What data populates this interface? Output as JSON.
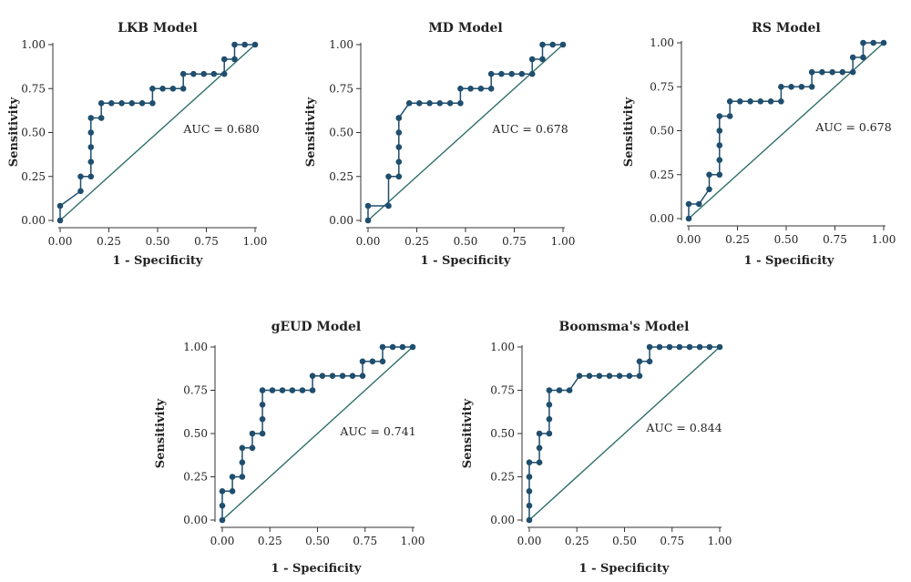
{
  "chart_data": [
    {
      "type": "line",
      "title": "LKB Model",
      "xlabel": "1 - Specificity",
      "ylabel": "Sensitivity",
      "xlim": [
        0,
        1
      ],
      "ylim": [
        0,
        1
      ],
      "xticks": [
        "0.00",
        "0.25",
        "0.50",
        "0.75",
        "1.00"
      ],
      "yticks": [
        "0.00",
        "0.25",
        "0.50",
        "0.75",
        "1.00"
      ],
      "annotation": "AUC = 0.680",
      "reference_line": [
        [
          0,
          0
        ],
        [
          1,
          1
        ]
      ],
      "series": [
        {
          "x": [
            0,
            0,
            0.105,
            0.105,
            0.158,
            0.158,
            0.158,
            0.158,
            0.158,
            0.211,
            0.211,
            0.263,
            0.316,
            0.368,
            0.421,
            0.474,
            0.474,
            0.526,
            0.579,
            0.632,
            0.632,
            0.684,
            0.737,
            0.789,
            0.842,
            0.842,
            0.895,
            0.895,
            0.947,
            1.0
          ],
          "y": [
            0,
            0.083,
            0.167,
            0.25,
            0.25,
            0.333,
            0.417,
            0.5,
            0.583,
            0.583,
            0.667,
            0.667,
            0.667,
            0.667,
            0.667,
            0.667,
            0.75,
            0.75,
            0.75,
            0.75,
            0.833,
            0.833,
            0.833,
            0.833,
            0.833,
            0.917,
            0.917,
            1.0,
            1.0,
            1.0
          ]
        }
      ]
    },
    {
      "type": "line",
      "title": "MD Model",
      "xlabel": "1 - Specificity",
      "ylabel": "Sensitivity",
      "xlim": [
        0,
        1
      ],
      "ylim": [
        0,
        1
      ],
      "xticks": [
        "0.00",
        "0.25",
        "0.50",
        "0.75",
        "1.00"
      ],
      "yticks": [
        "0.00",
        "0.25",
        "0.50",
        "0.75",
        "1.00"
      ],
      "annotation": "AUC = 0.678",
      "reference_line": [
        [
          0,
          0
        ],
        [
          1,
          1
        ]
      ],
      "series": [
        {
          "x": [
            0,
            0,
            0.105,
            0.105,
            0.158,
            0.158,
            0.158,
            0.158,
            0.158,
            0.158,
            0.211,
            0.263,
            0.316,
            0.368,
            0.421,
            0.474,
            0.474,
            0.526,
            0.579,
            0.632,
            0.632,
            0.684,
            0.737,
            0.789,
            0.842,
            0.842,
            0.895,
            0.895,
            0.947,
            1.0
          ],
          "y": [
            0,
            0.083,
            0.083,
            0.25,
            0.25,
            0.333,
            0.417,
            0.5,
            0.583,
            0.583,
            0.667,
            0.667,
            0.667,
            0.667,
            0.667,
            0.667,
            0.75,
            0.75,
            0.75,
            0.75,
            0.833,
            0.833,
            0.833,
            0.833,
            0.833,
            0.917,
            0.917,
            1.0,
            1.0,
            1.0
          ]
        }
      ]
    },
    {
      "type": "line",
      "title": "RS Model",
      "xlabel": "1 - Specificity",
      "ylabel": "Sensitivity",
      "xlim": [
        0,
        1
      ],
      "ylim": [
        0,
        1
      ],
      "xticks": [
        "0.00",
        "0.25",
        "0.50",
        "0.75",
        "1.00"
      ],
      "yticks": [
        "0.00",
        "0.25",
        "0.50",
        "0.75",
        "1.00"
      ],
      "annotation": "AUC = 0.678",
      "reference_line": [
        [
          0,
          0
        ],
        [
          1,
          1
        ]
      ],
      "series": [
        {
          "x": [
            0,
            0,
            0.053,
            0.105,
            0.105,
            0.158,
            0.158,
            0.158,
            0.158,
            0.158,
            0.211,
            0.211,
            0.263,
            0.316,
            0.368,
            0.421,
            0.474,
            0.474,
            0.526,
            0.579,
            0.632,
            0.632,
            0.684,
            0.737,
            0.789,
            0.842,
            0.842,
            0.895,
            0.895,
            0.947,
            1.0
          ],
          "y": [
            0,
            0.083,
            0.083,
            0.167,
            0.25,
            0.25,
            0.333,
            0.417,
            0.5,
            0.583,
            0.583,
            0.667,
            0.667,
            0.667,
            0.667,
            0.667,
            0.667,
            0.75,
            0.75,
            0.75,
            0.75,
            0.833,
            0.833,
            0.833,
            0.833,
            0.833,
            0.917,
            0.917,
            1.0,
            1.0,
            1.0
          ]
        }
      ]
    },
    {
      "type": "line",
      "title": "gEUD Model",
      "xlabel": "1 - Specificity",
      "ylabel": "Sensitivity",
      "xlim": [
        0,
        1
      ],
      "ylim": [
        0,
        1
      ],
      "xticks": [
        "0.00",
        "0.25",
        "0.50",
        "0.75",
        "1.00"
      ],
      "yticks": [
        "0.00",
        "0.25",
        "0.50",
        "0.75",
        "1.00"
      ],
      "annotation": "AUC = 0.741",
      "reference_line": [
        [
          0,
          0
        ],
        [
          1,
          1
        ]
      ],
      "series": [
        {
          "x": [
            0,
            0,
            0,
            0.053,
            0.053,
            0.105,
            0.105,
            0.105,
            0.158,
            0.158,
            0.211,
            0.211,
            0.211,
            0.211,
            0.263,
            0.316,
            0.368,
            0.421,
            0.474,
            0.474,
            0.526,
            0.579,
            0.632,
            0.684,
            0.737,
            0.737,
            0.789,
            0.842,
            0.842,
            0.895,
            0.947,
            1.0
          ],
          "y": [
            0,
            0.083,
            0.167,
            0.167,
            0.25,
            0.25,
            0.333,
            0.417,
            0.417,
            0.5,
            0.5,
            0.583,
            0.667,
            0.75,
            0.75,
            0.75,
            0.75,
            0.75,
            0.75,
            0.833,
            0.833,
            0.833,
            0.833,
            0.833,
            0.833,
            0.917,
            0.917,
            0.917,
            1.0,
            1.0,
            1.0,
            1.0
          ]
        }
      ]
    },
    {
      "type": "line",
      "title": "Boomsma's Model",
      "xlabel": "1 - Specificity",
      "ylabel": "Sensitivity",
      "xlim": [
        0,
        1
      ],
      "ylim": [
        0,
        1
      ],
      "xticks": [
        "0.00",
        "0.25",
        "0.50",
        "0.75",
        "1.00"
      ],
      "yticks": [
        "0.00",
        "0.25",
        "0.50",
        "0.75",
        "1.00"
      ],
      "annotation": "AUC = 0.844",
      "reference_line": [
        [
          0,
          0
        ],
        [
          1,
          1
        ]
      ],
      "series": [
        {
          "x": [
            0,
            0,
            0,
            0,
            0,
            0.053,
            0.053,
            0.053,
            0.105,
            0.105,
            0.105,
            0.105,
            0.158,
            0.211,
            0.263,
            0.316,
            0.368,
            0.421,
            0.474,
            0.526,
            0.579,
            0.579,
            0.632,
            0.632,
            0.684,
            0.737,
            0.789,
            0.842,
            0.895,
            0.947,
            1.0
          ],
          "y": [
            0,
            0.083,
            0.167,
            0.25,
            0.333,
            0.333,
            0.417,
            0.5,
            0.5,
            0.583,
            0.667,
            0.75,
            0.75,
            0.75,
            0.833,
            0.833,
            0.833,
            0.833,
            0.833,
            0.833,
            0.833,
            0.917,
            0.917,
            1.0,
            1.0,
            1.0,
            1.0,
            1.0,
            1.0,
            1.0,
            1.0
          ]
        }
      ]
    }
  ]
}
